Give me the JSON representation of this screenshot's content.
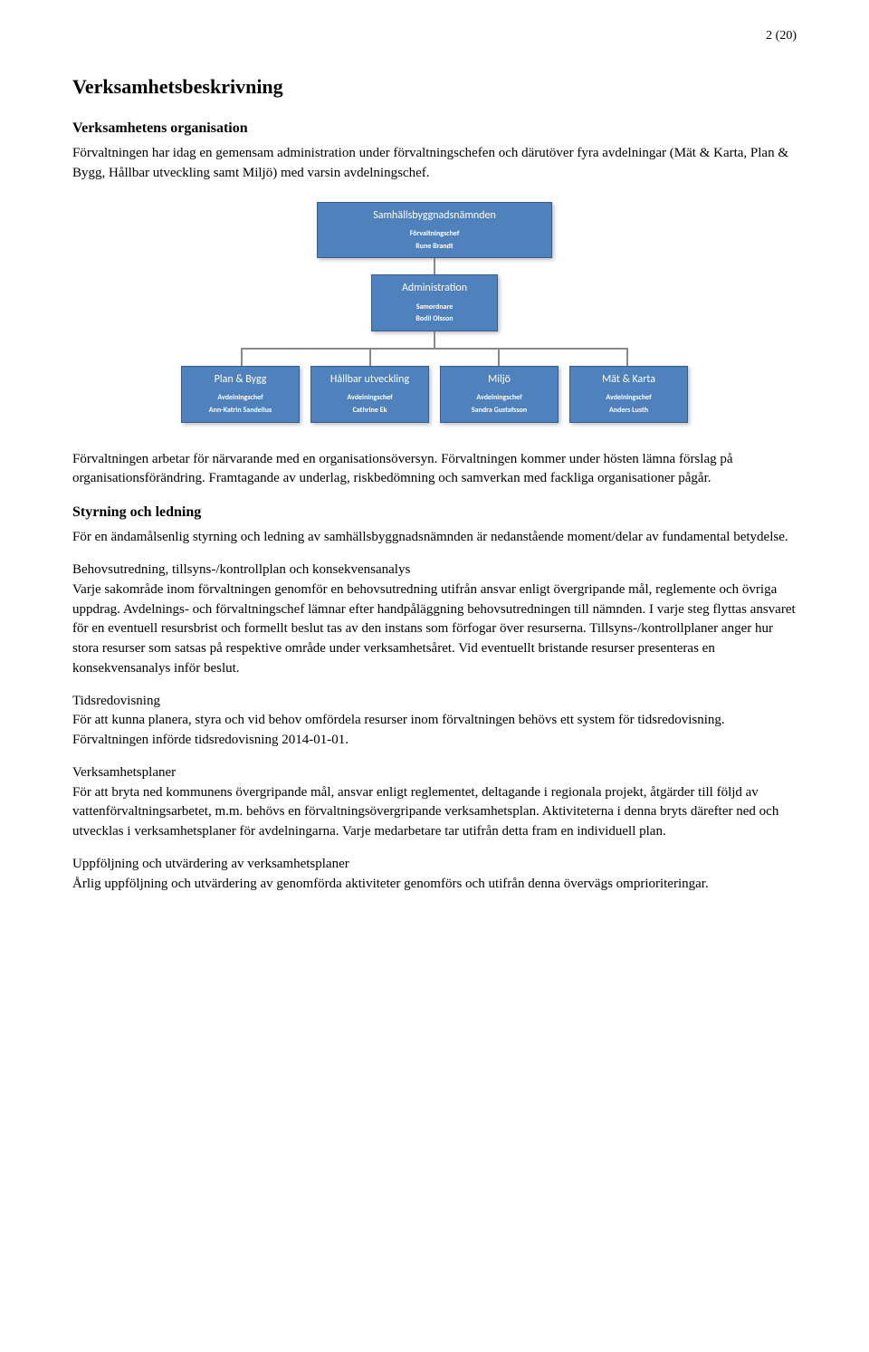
{
  "page_number": "2 (20)",
  "main_heading": "Verksamhetsbeskrivning",
  "section1": {
    "heading": "Verksamhetens organisation",
    "p1": "Förvaltningen har idag en gemensam administration under förvaltningschefen och därutöver fyra avdelningar (Mät & Karta, Plan & Bygg, Hållbar utveckling samt Miljö) med varsin avdelningschef."
  },
  "orgchart": {
    "top": {
      "title": "Samhällsbyggnadsnämnden",
      "role": "Förvaltningschef",
      "name": "Rune Brandt"
    },
    "admin": {
      "title": "Administration",
      "role": "Samordnare",
      "name": "Bodil Olsson"
    },
    "boxes": [
      {
        "title": "Plan & Bygg",
        "role": "Avdelningschef",
        "name": "Ann-Katrin Sandelius"
      },
      {
        "title": "Hållbar utveckling",
        "role": "Avdelningschef",
        "name": "Cathrine Ek"
      },
      {
        "title": "Miljö",
        "role": "Avdelningschef",
        "name": "Sandra Gustafsson"
      },
      {
        "title": "Mät & Karta",
        "role": "Avdelningschef",
        "name": "Anders Lusth"
      }
    ],
    "colors": {
      "box_fill": "#4f81bd",
      "box_border": "#385d8a",
      "connector": "#888888"
    }
  },
  "p_after_chart": "Förvaltningen arbetar för närvarande med en organisationsöversyn. Förvaltningen kommer under hösten lämna förslag på organisationsförändring. Framtagande av underlag, riskbedömning och samverkan med fackliga organisationer pågår.",
  "section2": {
    "heading": "Styrning och ledning",
    "p1": "För en ändamålsenlig styrning och ledning av samhällsbyggnadsnämnden är nedanstående moment/delar av fundamental betydelse.",
    "lead1": "Behovsutredning, tillsyns-/kontrollplan och konsekvensanalys",
    "p2": "Varje sakområde inom förvaltningen genomför en behovsutredning utifrån ansvar enligt övergripande mål, reglemente och övriga uppdrag. Avdelnings- och förvaltningschef lämnar efter handpåläggning behovsutredningen till nämnden. I varje steg flyttas ansvaret för en eventuell resursbrist och formellt beslut tas av den instans som förfogar över resurserna. Tillsyns-/kontrollplaner anger hur stora resurser som satsas på respektive område under verksamhetsåret. Vid eventuellt bristande resurser presenteras en konsekvensanalys inför beslut.",
    "lead2": "Tidsredovisning",
    "p3": "För att kunna planera, styra och vid behov omfördela resurser inom förvaltningen behövs ett system för tidsredovisning. Förvaltningen införde tidsredovisning 2014-01-01.",
    "lead3": "Verksamhetsplaner",
    "p4": "För att bryta ned kommunens övergripande mål, ansvar enligt reglementet, deltagande i regionala projekt, åtgärder till följd av vattenförvaltningsarbetet, m.m. behövs en förvaltningsövergripande verksamhetsplan. Aktiviteterna i denna bryts därefter ned och utvecklas i verksamhetsplaner för avdelningarna. Varje medarbetare tar utifrån detta fram en individuell plan.",
    "lead4": "Uppföljning och utvärdering av verksamhetsplaner",
    "p5": "Årlig uppföljning och utvärdering av genomförda aktiviteter genomförs och utifrån denna övervägs omprioriteringar."
  }
}
